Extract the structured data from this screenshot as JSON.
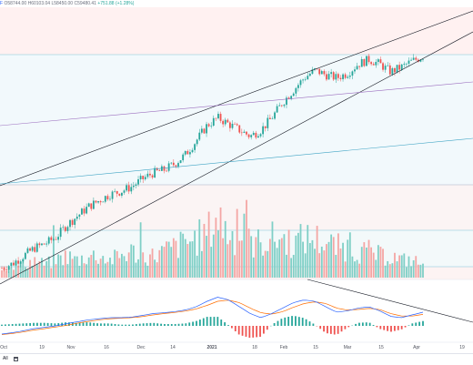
{
  "ohlc_bar": {
    "marker": "F",
    "open": "O58744.00",
    "high": "H60103.04",
    "low": "L58450.00",
    "close": "C59480.41",
    "change": "+751.88 (+1.28%)"
  },
  "x_axis_labels": [
    "Oct",
    "19",
    "Nov",
    "16",
    "Dec",
    "14",
    "2021",
    "18",
    "Feb",
    "15",
    "Mar",
    "15",
    "Apr",
    "19"
  ],
  "bottom_bar": {
    "range_all": "All",
    "calendar_icon": "calendar-icon"
  },
  "colors": {
    "up": "#26a69a",
    "down": "#ef5350",
    "up_volume": "#7fcfc6",
    "down_volume": "#f4a6a4",
    "macd_line": "#2962ff",
    "signal_line": "#ff6d00",
    "trend_line": "#131722",
    "purple_line": "#9c6fbf",
    "teal_line": "#3fa4c4"
  },
  "chart_data": {
    "type": "candlestick",
    "title": "",
    "legend_values": {
      "open": 58744.0,
      "high": 60103.04,
      "low": 58450.0,
      "close": 59480.41,
      "change": 751.88,
      "change_pct": 1.28
    },
    "x_axis": [
      "Oct",
      "19",
      "Nov",
      "16",
      "Dec",
      "14",
      "2021",
      "18",
      "Feb",
      "15",
      "Mar",
      "15",
      "Apr",
      "19"
    ],
    "price_trend": [
      2,
      5,
      10,
      15,
      18,
      22,
      30,
      36,
      42,
      46,
      50,
      52,
      55,
      60,
      64,
      66,
      70,
      76,
      85,
      95,
      100,
      96,
      92,
      88,
      92,
      100,
      110,
      118,
      126,
      131,
      128,
      126,
      129,
      135,
      138,
      135,
      130,
      133,
      137,
      140
    ],
    "volume_trend": [
      2,
      3,
      3,
      4,
      3,
      4,
      5,
      4,
      5,
      5,
      4,
      5,
      6,
      5,
      5,
      6,
      7,
      8,
      9,
      10,
      14,
      10,
      9,
      8,
      8,
      9,
      9,
      8,
      9,
      9,
      8,
      7,
      7,
      6,
      6,
      5,
      5,
      4,
      4,
      3
    ],
    "macd_line": [
      0.1,
      0.15,
      0.22,
      0.3,
      0.35,
      0.4,
      0.48,
      0.55,
      0.62,
      0.66,
      0.7,
      0.7,
      0.72,
      0.78,
      0.85,
      0.88,
      0.92,
      0.98,
      1.1,
      1.3,
      1.45,
      1.35,
      1.1,
      0.85,
      0.7,
      0.85,
      1.05,
      1.25,
      1.35,
      1.3,
      1.1,
      0.9,
      0.95,
      1.05,
      1.1,
      0.95,
      0.75,
      0.7,
      0.8,
      0.9
    ],
    "signal_line": [
      0.08,
      0.12,
      0.18,
      0.25,
      0.3,
      0.36,
      0.42,
      0.5,
      0.56,
      0.62,
      0.66,
      0.68,
      0.7,
      0.74,
      0.8,
      0.85,
      0.89,
      0.94,
      1.02,
      1.15,
      1.3,
      1.34,
      1.25,
      1.05,
      0.88,
      0.83,
      0.92,
      1.08,
      1.22,
      1.28,
      1.22,
      1.05,
      0.98,
      1.0,
      1.04,
      1.0,
      0.85,
      0.76,
      0.76,
      0.82
    ]
  }
}
